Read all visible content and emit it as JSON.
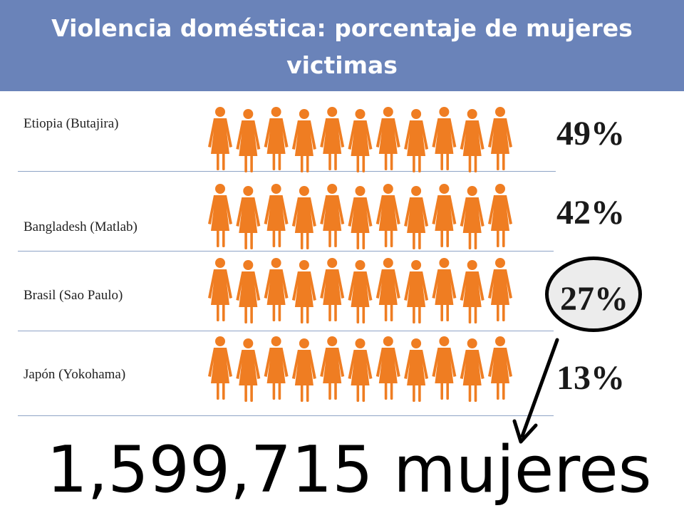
{
  "title": "Violencia doméstica: porcentaje de mujeres victimas",
  "total_label": "1,599,715 mujeres",
  "colors": {
    "header": "#6a83b9",
    "figure": "#ef7d22",
    "divider": "#8ea3c6",
    "highlight_oval": "#ececec"
  },
  "icons": {
    "figure": "woman-figure-icon",
    "arrow": "arrow-icon"
  },
  "highlighted_row": "Brasil (Sao Paulo)",
  "chart_data": {
    "type": "pictogram",
    "title": "Violencia doméstica: porcentaje de mujeres victimas",
    "unit": "%",
    "figures_per_row": 11,
    "categories": [
      "Etiopia (Butajira)",
      "Bangladesh (Matlab)",
      "Brasil (Sao Paulo)",
      "Japón (Yokohama)"
    ],
    "values": [
      49,
      42,
      27,
      13
    ],
    "value_labels": [
      "49%",
      "42%",
      "27%",
      "13%"
    ]
  }
}
